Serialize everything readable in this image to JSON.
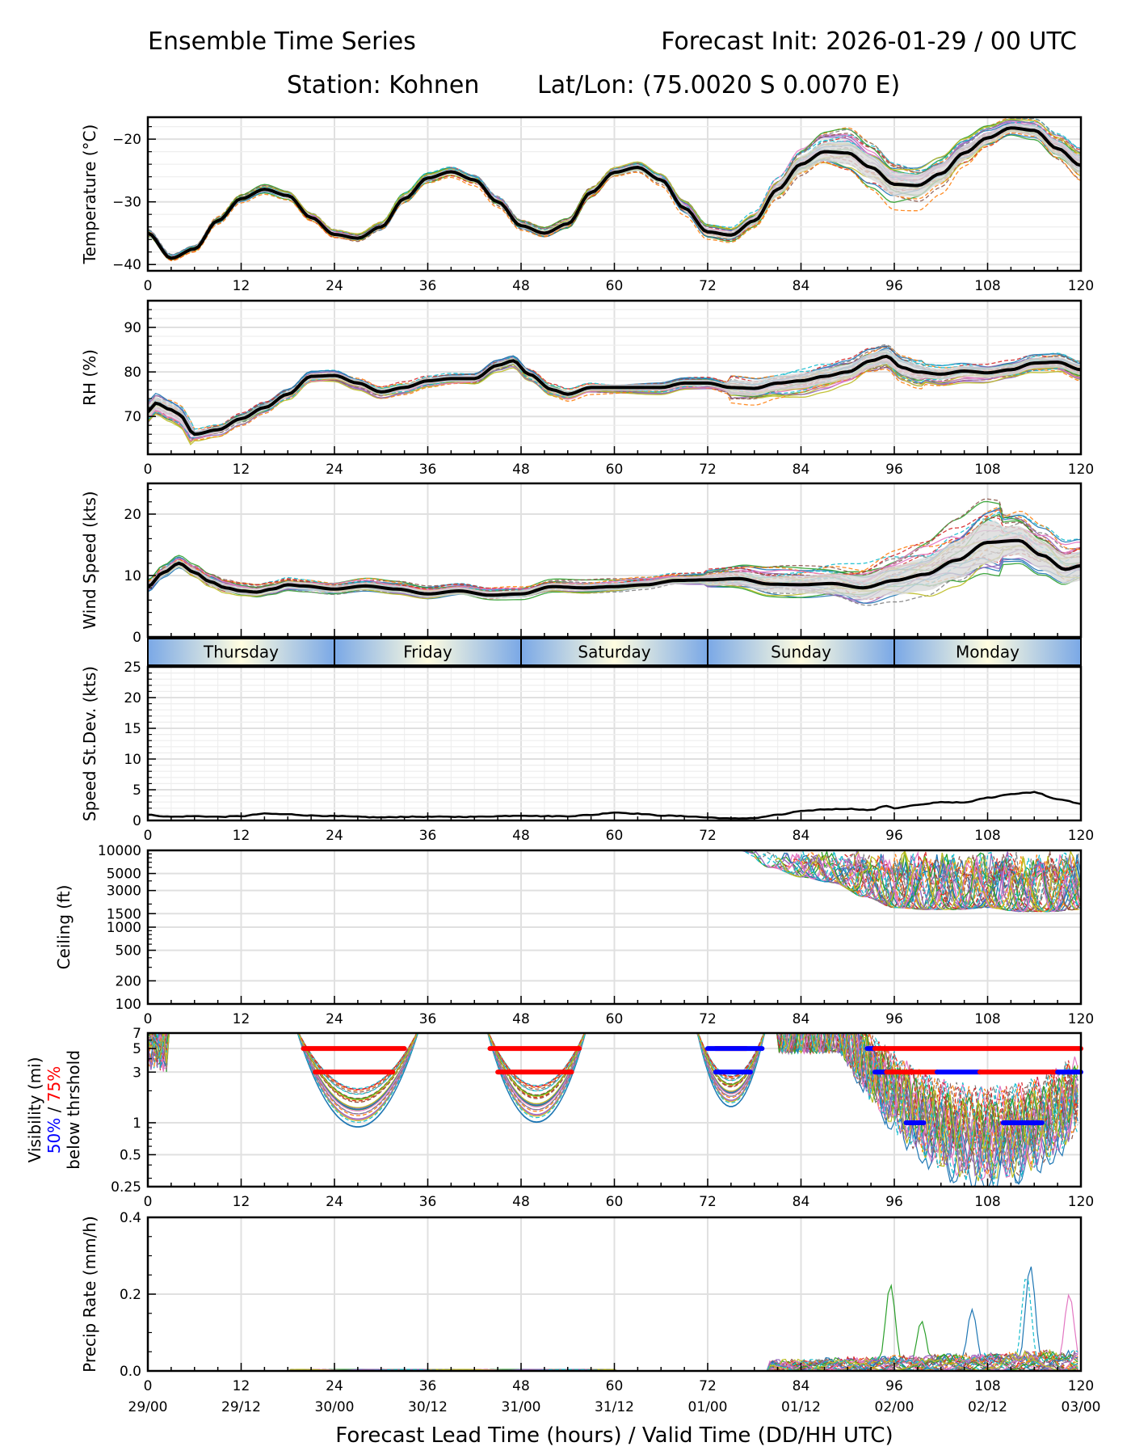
{
  "header": {
    "title_left": "Ensemble Time Series",
    "title_right": "Forecast Init: 2026-01-29 / 00 UTC",
    "station": "Station: Kohnen",
    "latlon": "Lat/Lon: (75.0020 S 0.0070 E)"
  },
  "colors": {
    "member_palette": [
      "#1f77b4",
      "#ff7f0e",
      "#2ca02c",
      "#d62728",
      "#9467bd",
      "#8c564b",
      "#e377c2",
      "#7f7f7f",
      "#bcbd22",
      "#17becf"
    ],
    "mean_line": "#000000",
    "spread_fill": "#d9d9d9",
    "vis_50pct": "#0000ff",
    "vis_75pct": "#ff0000",
    "day_band_edge": "#7aa8e6",
    "day_band_center": "#fffde0",
    "grid": "#e0e0e0"
  },
  "chart_data": [
    {
      "id": "temperature",
      "type": "line",
      "ylabel": "Temperature (°C)",
      "ylim": [
        -41,
        -16.5
      ],
      "yticks": [
        -40,
        -30,
        -20
      ],
      "xlim": [
        0,
        120
      ],
      "grid": true,
      "ensemble_members": 30,
      "mean": {
        "x": [
          0,
          3,
          6,
          9,
          12,
          15,
          18,
          21,
          24,
          27,
          30,
          33,
          36,
          39,
          42,
          45,
          48,
          51,
          54,
          57,
          60,
          63,
          66,
          69,
          72,
          75,
          78,
          81,
          84,
          87,
          90,
          93,
          96,
          99,
          102,
          105,
          108,
          111,
          114,
          117,
          120
        ],
        "y": [
          -35,
          -39,
          -37.5,
          -33,
          -29.5,
          -28,
          -29,
          -32.5,
          -35.2,
          -35.8,
          -34,
          -29.5,
          -26.2,
          -25.2,
          -26.5,
          -30,
          -33.8,
          -35,
          -33.5,
          -28.5,
          -25.3,
          -24.5,
          -26.5,
          -31,
          -34.8,
          -35.3,
          -33,
          -28,
          -24,
          -22,
          -22.2,
          -24.5,
          -27.2,
          -27.4,
          -25.5,
          -22.2,
          -19.8,
          -18.2,
          -18.6,
          -21.5,
          -24.2
        ]
      },
      "spread_max": [
        0.5,
        0.5,
        0.5,
        0.5,
        0.5,
        0.6,
        0.6,
        0.6,
        0.6,
        0.6,
        0.6,
        0.7,
        0.7,
        0.7,
        0.7,
        0.7,
        0.7,
        0.7,
        0.7,
        0.8,
        0.8,
        0.8,
        0.8,
        0.9,
        0.9,
        1.0,
        1.2,
        1.8,
        2.2,
        2.5,
        3.0,
        3.2,
        3.2,
        3.0,
        2.6,
        2.0,
        1.5,
        1.2,
        1.5,
        2.0,
        2.5
      ]
    },
    {
      "id": "rh",
      "type": "line",
      "ylabel": "RH (%)",
      "ylim": [
        61.5,
        96
      ],
      "yticks": [
        70,
        80,
        90
      ],
      "xlim": [
        0,
        120
      ],
      "grid": true,
      "ensemble_members": 30,
      "mean": {
        "x": [
          0,
          1,
          3,
          4,
          6,
          9,
          12,
          15,
          18,
          21,
          24,
          27,
          30,
          33,
          36,
          39,
          42,
          45,
          47,
          49,
          52,
          54,
          57,
          60,
          63,
          66,
          69,
          72,
          75,
          78,
          81,
          84,
          87,
          90,
          93,
          95,
          97,
          99,
          102,
          105,
          108,
          111,
          114,
          117,
          120
        ],
        "y": [
          71,
          73,
          71.5,
          70.5,
          66,
          67,
          69.5,
          72,
          75,
          79,
          79.2,
          77.5,
          75.5,
          76.5,
          78,
          78.5,
          78.5,
          81.5,
          82.5,
          79.5,
          76,
          75,
          76.5,
          76.5,
          76.5,
          76.5,
          77.5,
          77.5,
          76.5,
          76.3,
          77.5,
          78,
          79,
          80,
          82.5,
          83.5,
          81,
          80,
          79.5,
          80.2,
          79.8,
          80.5,
          82,
          82.2,
          80.5
        ]
      }
    },
    {
      "id": "wind_speed",
      "type": "line",
      "ylabel": "Wind Speed (kts)",
      "ylim": [
        0,
        25
      ],
      "yticks": [
        0,
        10,
        20
      ],
      "xlim": [
        0,
        120
      ],
      "grid": true,
      "ensemble_members": 30,
      "mean": {
        "x": [
          0,
          2,
          4,
          6,
          8,
          10,
          12,
          14,
          16,
          18,
          20,
          24,
          28,
          32,
          36,
          40,
          44,
          48,
          52,
          56,
          60,
          64,
          68,
          72,
          76,
          80,
          84,
          88,
          92,
          96,
          100,
          104,
          108,
          112,
          115,
          118,
          120
        ],
        "y": [
          8.2,
          10.5,
          12,
          10.5,
          9,
          8,
          7.5,
          7.3,
          7.8,
          8.5,
          8.3,
          7.8,
          8.3,
          7.8,
          7,
          7.5,
          6.8,
          7,
          8.2,
          8.0,
          8.2,
          8.5,
          9.2,
          9.3,
          9.5,
          8.6,
          8.5,
          8.7,
          8.0,
          9.2,
          10.2,
          12.5,
          15.4,
          15.7,
          13.3,
          11,
          11.6
        ]
      }
    },
    {
      "id": "day_band",
      "type": "table",
      "days": [
        "Thursday",
        "Friday",
        "Saturday",
        "Sunday",
        "Monday"
      ],
      "day_bounds_hours": [
        0,
        24,
        48,
        72,
        96,
        120
      ]
    },
    {
      "id": "speed_stdev",
      "type": "line",
      "ylabel": "Speed St.Dev. (kts)",
      "ylim": [
        0,
        25
      ],
      "yticks": [
        0,
        5,
        10,
        15,
        20,
        25
      ],
      "xlim": [
        0,
        120
      ],
      "grid": true,
      "series": [
        {
          "name": "stdev",
          "x": [
            0,
            3,
            6,
            9,
            12,
            15,
            18,
            21,
            24,
            27,
            30,
            33,
            36,
            39,
            42,
            45,
            48,
            51,
            54,
            57,
            60,
            63,
            66,
            69,
            72,
            75,
            78,
            81,
            84,
            87,
            90,
            93,
            95,
            96,
            99,
            102,
            105,
            108,
            111,
            114,
            117,
            120
          ],
          "y": [
            0.9,
            0.6,
            0.7,
            0.6,
            0.7,
            1.1,
            1.0,
            0.8,
            0.7,
            0.6,
            0.5,
            0.6,
            0.6,
            0.6,
            0.6,
            0.7,
            0.8,
            0.7,
            0.7,
            0.9,
            1.3,
            1.1,
            0.8,
            0.7,
            0.5,
            0.3,
            0.4,
            0.9,
            1.5,
            1.8,
            1.9,
            1.7,
            2.4,
            2.0,
            2.5,
            3.0,
            2.9,
            3.7,
            4.3,
            4.6,
            3.5,
            2.7
          ]
        }
      ]
    },
    {
      "id": "ceiling",
      "type": "line",
      "ylabel": "Ceiling (ft)",
      "yscale": "log",
      "ylim": [
        100,
        10000
      ],
      "yticks": [
        100,
        200,
        500,
        1000,
        1500,
        3000,
        5000,
        10000
      ],
      "xlim": [
        0,
        120
      ],
      "grid": true,
      "ensemble_members": 30,
      "note": "members appear from ~hour 76; envelope of ceiling values",
      "envelope": {
        "x": [
          76,
          80,
          84,
          88,
          92,
          96,
          100,
          104,
          108,
          112,
          116,
          120
        ],
        "upper": [
          10000,
          10000,
          10000,
          10000,
          10000,
          10000,
          10000,
          10000,
          10000,
          10000,
          10000,
          10000
        ],
        "lower": [
          10000,
          6000,
          4500,
          3800,
          2500,
          1800,
          1700,
          1700,
          1800,
          1600,
          1600,
          1700
        ]
      }
    },
    {
      "id": "visibility",
      "type": "line",
      "ylabel": "Visibility (mi)",
      "ylabel_50": "50%",
      "ylabel_sep": " / ",
      "ylabel_75": "75%",
      "ylabel2": "below thrshold",
      "yscale": "log",
      "ylim": [
        0.25,
        7
      ],
      "yticks": [
        0.25,
        0.5,
        1,
        3,
        5,
        7
      ],
      "xlim": [
        0,
        120
      ],
      "grid": true,
      "ensemble_members": 30,
      "dips": [
        {
          "center": 27,
          "min": 0.9,
          "start": 19,
          "end": 35
        },
        {
          "center": 50,
          "min": 1.0,
          "start": 43,
          "end": 56
        },
        {
          "center": 75,
          "min": 1.4,
          "start": 71,
          "end": 80
        },
        {
          "center": 108,
          "min": 0.4,
          "start": 82,
          "end": 120
        }
      ],
      "threshold_bars": [
        {
          "level": 5,
          "pct": 75,
          "start": 20,
          "end": 33
        },
        {
          "level": 3,
          "pct": 75,
          "start": 21.5,
          "end": 31.5
        },
        {
          "level": 5,
          "pct": 75,
          "start": 44,
          "end": 55.5
        },
        {
          "level": 3,
          "pct": 75,
          "start": 45,
          "end": 54.5
        },
        {
          "level": 5,
          "pct": 75,
          "start": 73,
          "end": 77
        },
        {
          "level": 5,
          "pct": 50,
          "start": 72,
          "end": 79
        },
        {
          "level": 3,
          "pct": 50,
          "start": 73,
          "end": 77.5
        },
        {
          "level": 5,
          "pct": 50,
          "start": 92.5,
          "end": 93.5
        },
        {
          "level": 5,
          "pct": 75,
          "start": 93.5,
          "end": 120
        },
        {
          "level": 3,
          "pct": 50,
          "start": 93.5,
          "end": 95
        },
        {
          "level": 3,
          "pct": 75,
          "start": 95,
          "end": 101.5
        },
        {
          "level": 3,
          "pct": 50,
          "start": 101.5,
          "end": 107
        },
        {
          "level": 3,
          "pct": 75,
          "start": 107,
          "end": 117
        },
        {
          "level": 3,
          "pct": 50,
          "start": 117,
          "end": 120
        },
        {
          "level": 1,
          "pct": 50,
          "start": 97.5,
          "end": 99.8
        },
        {
          "level": 1,
          "pct": 50,
          "start": 110,
          "end": 115
        }
      ]
    },
    {
      "id": "precip",
      "type": "line",
      "ylabel": "Precip Rate (mm/h)",
      "ylim": [
        0,
        0.4
      ],
      "yticks": [
        0.0,
        0.2,
        0.4
      ],
      "xlim": [
        0,
        120
      ],
      "grid": true,
      "ensemble_members": 30,
      "peaks": [
        {
          "x": 95.5,
          "y": 0.225,
          "member": 2
        },
        {
          "x": 106,
          "y": 0.16,
          "member": 0
        },
        {
          "x": 113.5,
          "y": 0.275,
          "member": 0
        },
        {
          "x": 113,
          "y": 0.25,
          "member": 9
        },
        {
          "x": 118.5,
          "y": 0.2,
          "member": 6
        },
        {
          "x": 99.5,
          "y": 0.13,
          "member": 2
        }
      ]
    }
  ],
  "x_axis": {
    "ticks": [
      0,
      12,
      24,
      36,
      48,
      60,
      72,
      84,
      96,
      108,
      120
    ],
    "valid_time_labels": [
      "29/00",
      "29/12",
      "30/00",
      "30/12",
      "31/00",
      "31/12",
      "01/00",
      "01/12",
      "02/00",
      "02/12",
      "03/00"
    ],
    "xlabel": "Forecast Lead Time (hours) / Valid Time (DD/HH UTC)"
  }
}
